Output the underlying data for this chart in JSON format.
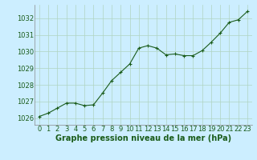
{
  "x": [
    0,
    1,
    2,
    3,
    4,
    5,
    6,
    7,
    8,
    9,
    10,
    11,
    12,
    13,
    14,
    15,
    16,
    17,
    18,
    19,
    20,
    21,
    22,
    23
  ],
  "y": [
    1026.1,
    1026.3,
    1026.6,
    1026.9,
    1026.9,
    1026.75,
    1026.8,
    1027.5,
    1028.25,
    1028.75,
    1029.25,
    1030.2,
    1030.35,
    1030.2,
    1029.8,
    1029.85,
    1029.75,
    1029.75,
    1030.05,
    1030.55,
    1031.1,
    1031.75,
    1031.9,
    1032.4
  ],
  "line_color": "#1a5c1a",
  "marker": "+",
  "bg_color": "#cceeff",
  "grid_color": "#b0d4c0",
  "xlabel": "Graphe pression niveau de la mer (hPa)",
  "ylim": [
    1025.6,
    1032.8
  ],
  "xlim": [
    -0.5,
    23.5
  ],
  "yticks": [
    1026,
    1027,
    1028,
    1029,
    1030,
    1031,
    1032
  ],
  "xticks": [
    0,
    1,
    2,
    3,
    4,
    5,
    6,
    7,
    8,
    9,
    10,
    11,
    12,
    13,
    14,
    15,
    16,
    17,
    18,
    19,
    20,
    21,
    22,
    23
  ],
  "xlabel_fontsize": 7,
  "tick_fontsize": 6,
  "line_width": 0.8,
  "marker_size": 3.5
}
